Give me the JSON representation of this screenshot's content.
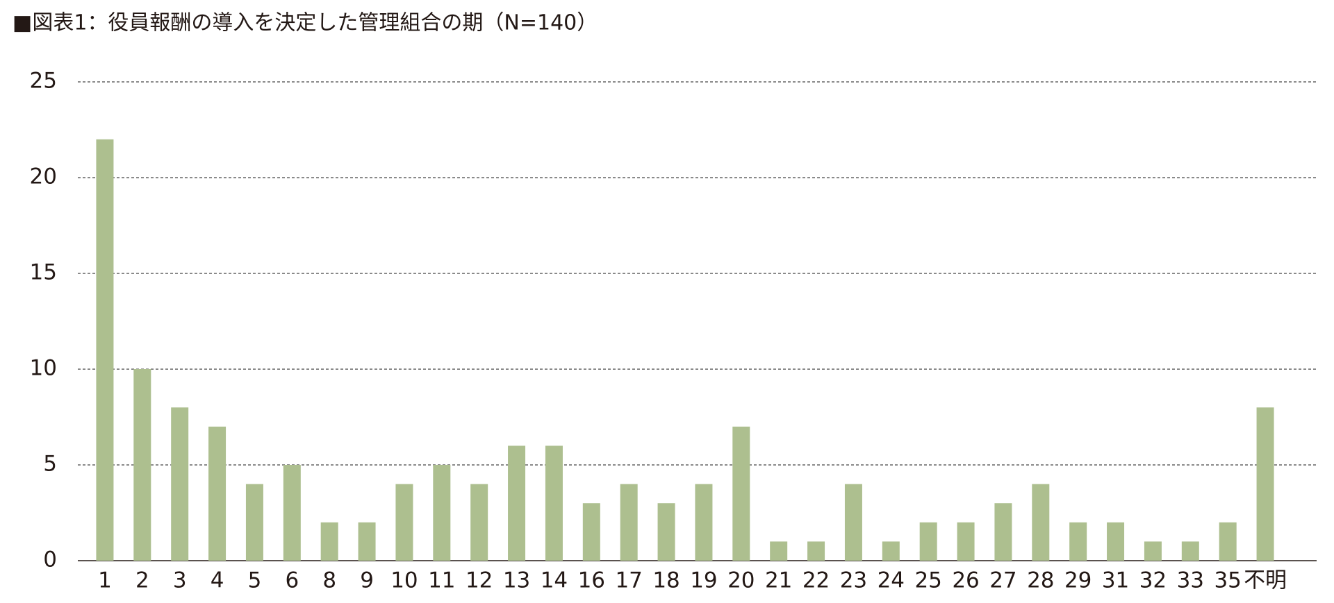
{
  "chart_data": {
    "type": "bar",
    "title": "■図表1：役員報酬の導入を決定した管理組合の期（N=140）",
    "categories": [
      "1",
      "2",
      "3",
      "4",
      "5",
      "6",
      "8",
      "9",
      "10",
      "11",
      "12",
      "13",
      "14",
      "16",
      "17",
      "18",
      "19",
      "20",
      "21",
      "22",
      "23",
      "24",
      "25",
      "26",
      "27",
      "28",
      "29",
      "31",
      "32",
      "33",
      "35",
      "不明"
    ],
    "values": [
      22,
      10,
      8,
      7,
      4,
      5,
      2,
      2,
      4,
      5,
      4,
      6,
      6,
      3,
      4,
      3,
      4,
      7,
      1,
      1,
      4,
      1,
      2,
      2,
      3,
      4,
      2,
      2,
      1,
      1,
      2,
      8
    ],
    "color": "#adbf8f",
    "ylim": [
      0,
      25
    ],
    "yticks": [
      0,
      5,
      10,
      15,
      20,
      25
    ],
    "grid": true
  }
}
